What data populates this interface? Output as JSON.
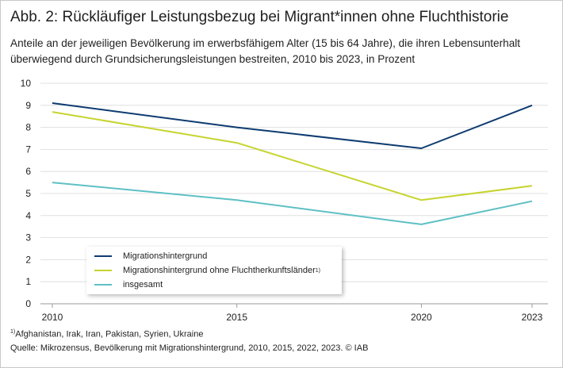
{
  "figure": {
    "title": "Abb. 2: Rückläufiger Leistungsbezug bei Migrant*innen ohne Fluchthistorie",
    "subtitle": "Anteile an der jeweiligen Bevölkerung im erwerbsfähigem Alter (15 bis 64 Jahre), die ihren Lebensunterhalt überwiegend durch Grundsicherungsleistungen bestreiten, 2010 bis 2023, in Prozent",
    "footnote_marker": "1)",
    "footnote": "Afghanistan, Irak, Iran, Pakistan, Syrien, Ukraine",
    "source": "Quelle: Mikrozensus, Bevölkerung mit Migrationshintergrund,  2010, 2015, 2022, 2023.  © IAB"
  },
  "chart_data": {
    "type": "line",
    "title": "Abb. 2: Rückläufiger Leistungsbezug bei Migrant*innen ohne Fluchthistorie",
    "xlabel": "",
    "ylabel": "",
    "x": [
      2010,
      2015,
      2020,
      2023
    ],
    "x_tick_labels": [
      "2010",
      "2015",
      "2020",
      "2023"
    ],
    "ylim": [
      0,
      10
    ],
    "y_ticks": [
      0,
      1,
      2,
      3,
      4,
      5,
      6,
      7,
      8,
      9,
      10
    ],
    "grid": true,
    "legend_position": "bottom-left",
    "series": [
      {
        "name": "Migrationshintergrund",
        "superscript": "",
        "color": "#0d3b70",
        "values": [
          9.1,
          8.0,
          7.05,
          9.0
        ]
      },
      {
        "name": "Migrationshintergrund ohne Fluchtherkunftsländer",
        "superscript": "1)",
        "color": "#c6d42f",
        "values": [
          8.7,
          7.3,
          4.7,
          5.35
        ]
      },
      {
        "name": "insgesamt",
        "superscript": "",
        "color": "#5ec0c4",
        "values": [
          5.5,
          4.7,
          3.6,
          4.65
        ]
      }
    ]
  }
}
